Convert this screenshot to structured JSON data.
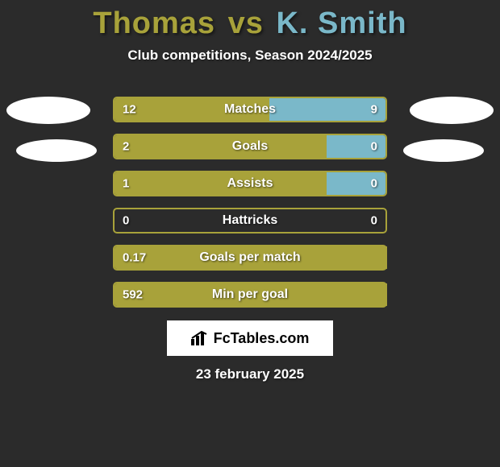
{
  "title": {
    "player1": "Thomas",
    "vs": "vs",
    "player2": "K. Smith",
    "player1_color": "#a8a23a",
    "player2_color": "#7ab8c9"
  },
  "subtitle": "Club competitions, Season 2024/2025",
  "colors": {
    "left_fill": "#a8a23a",
    "right_fill": "#7ab8c9",
    "outline": "#a8a23a"
  },
  "rows": [
    {
      "label": "Matches",
      "left_val": "12",
      "right_val": "9",
      "left_pct": 57,
      "right_pct": 43
    },
    {
      "label": "Goals",
      "left_val": "2",
      "right_val": "0",
      "left_pct": 78,
      "right_pct": 22
    },
    {
      "label": "Assists",
      "left_val": "1",
      "right_val": "0",
      "left_pct": 78,
      "right_pct": 22
    },
    {
      "label": "Hattricks",
      "left_val": "0",
      "right_val": "0",
      "left_pct": 0,
      "right_pct": 0
    },
    {
      "label": "Goals per match",
      "left_val": "0.17",
      "right_val": "",
      "left_pct": 100,
      "right_pct": 0
    },
    {
      "label": "Min per goal",
      "left_val": "592",
      "right_val": "",
      "left_pct": 100,
      "right_pct": 0
    }
  ],
  "source": "FcTables.com",
  "date": "23 february 2025"
}
